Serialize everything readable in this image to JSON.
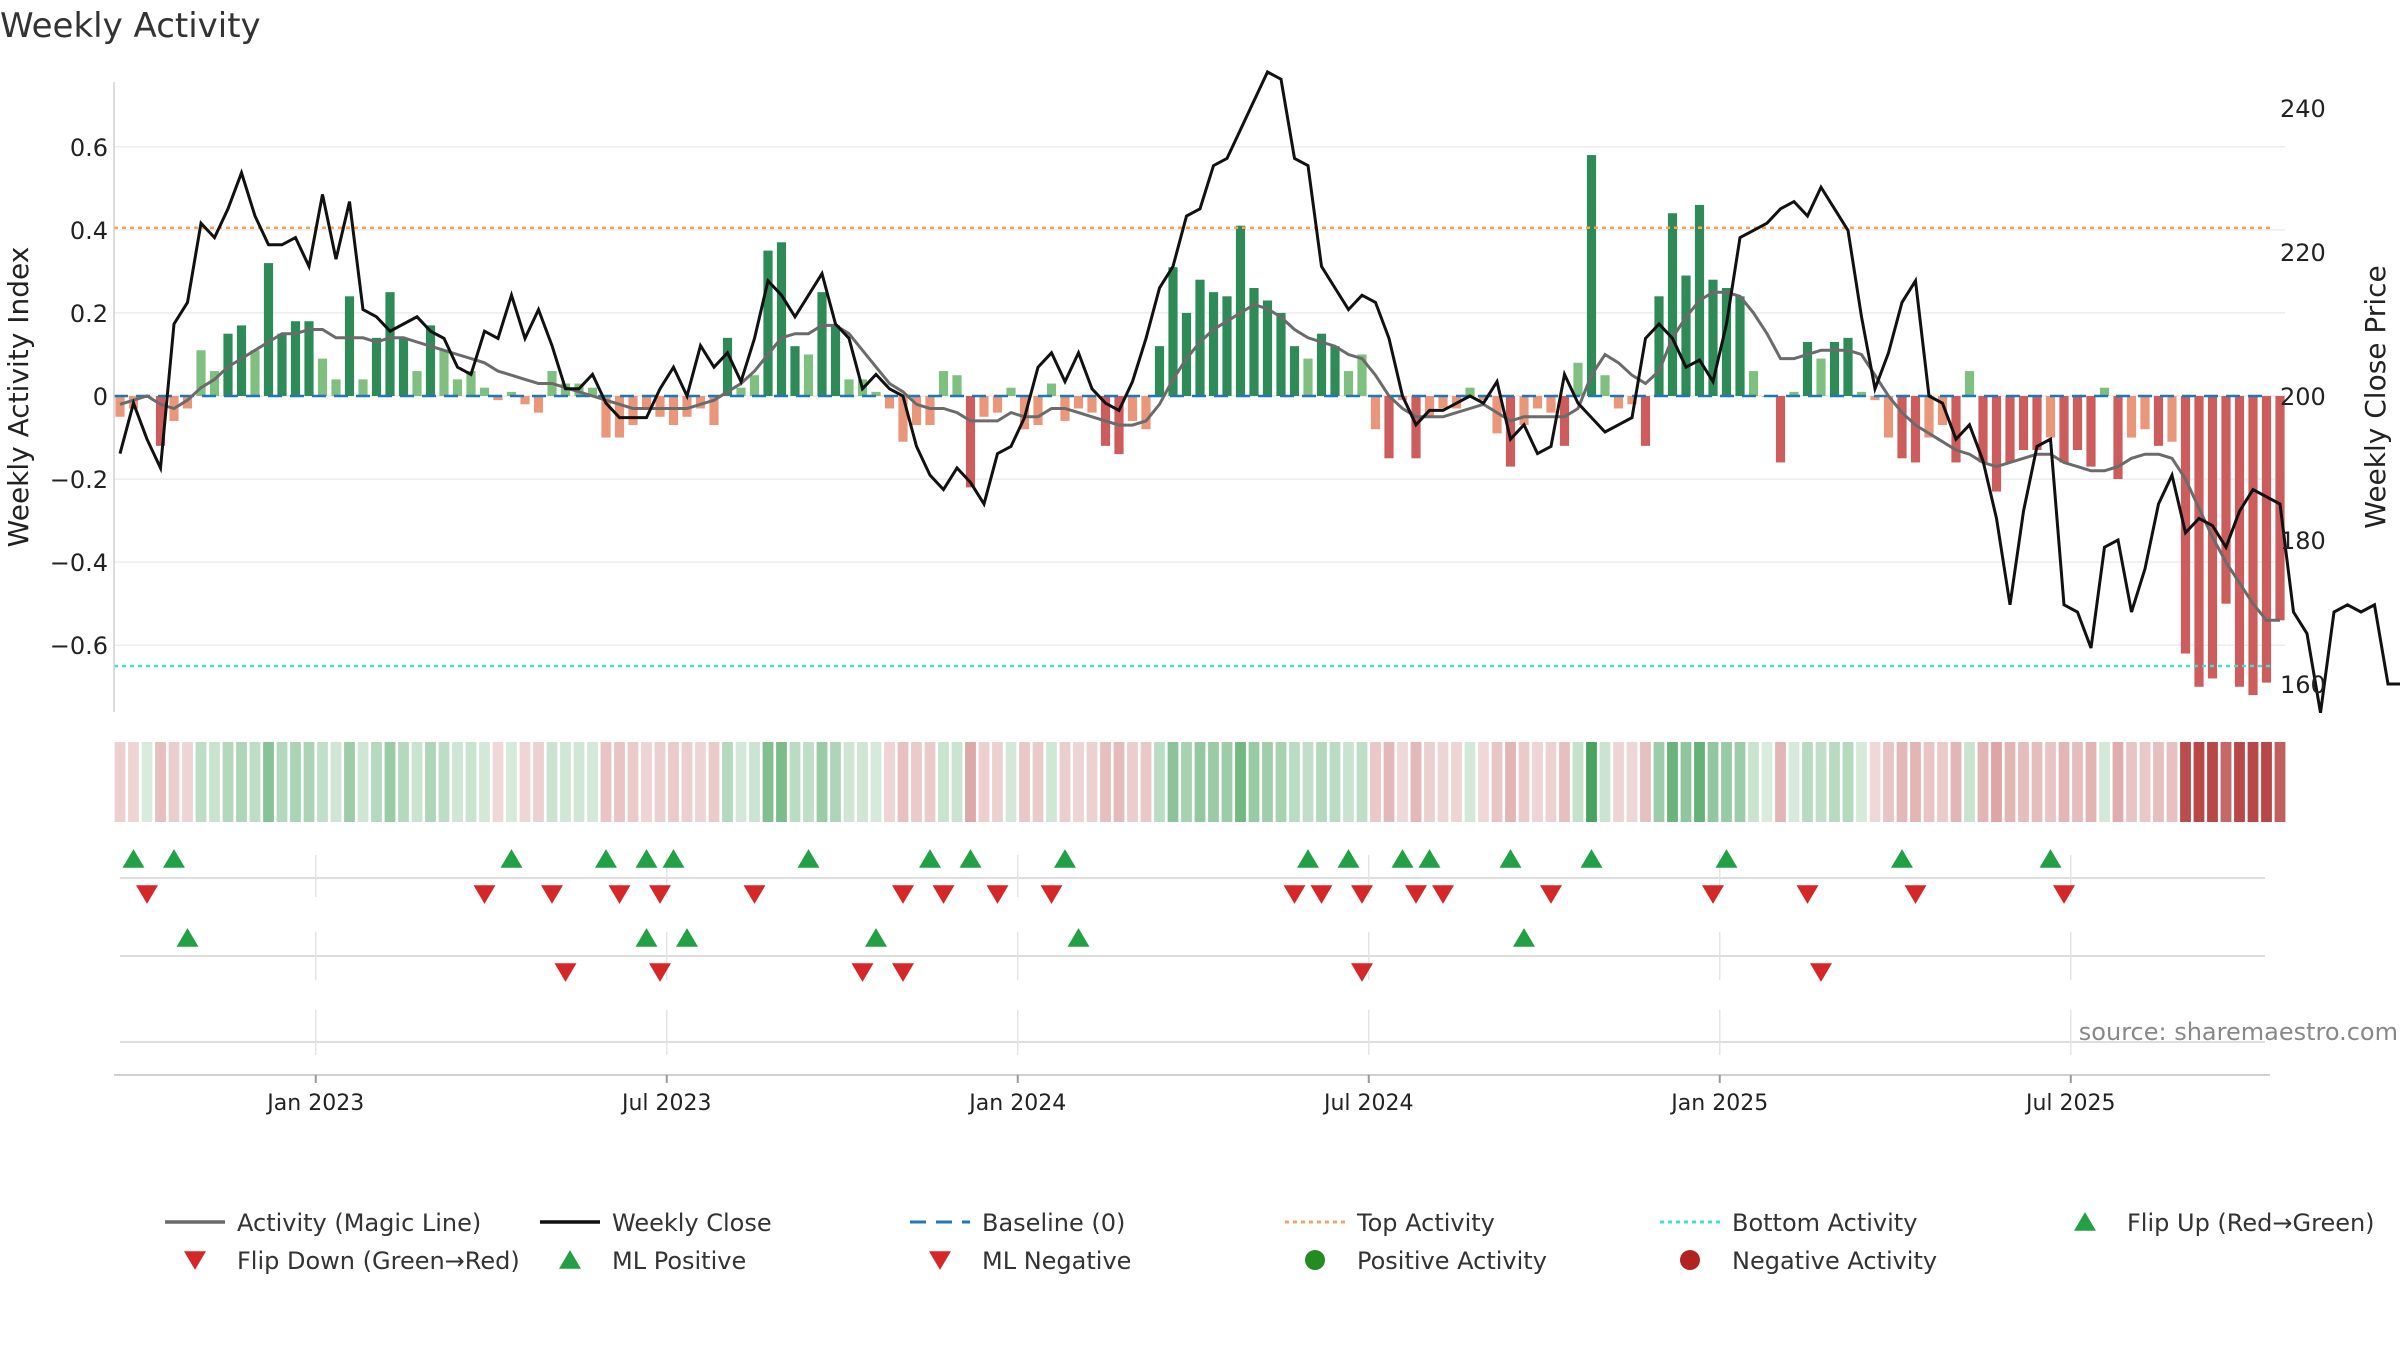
{
  "chart_data": {
    "type": "bar",
    "title": "Weekly Activity",
    "ylabel_left": "Weekly Activity Index",
    "ylabel_right": "Weekly Close Price",
    "left_ylim": [
      -0.78,
      0.78
    ],
    "right_ylim": [
      155,
      245
    ],
    "left_ticks": [
      0.6,
      0.4,
      0.2,
      0,
      -0.2,
      -0.4,
      -0.6
    ],
    "left_tick_labels": [
      "0.6",
      "0.4",
      "0.2",
      "0",
      "−0.2",
      "−0.4",
      "−0.6"
    ],
    "right_ticks": [
      240,
      220,
      200,
      180,
      160
    ],
    "right_tick_labels": [
      "240",
      "220",
      "200",
      "180",
      "160"
    ],
    "x_tick_labels": [
      "Jan 2023",
      "Jul 2023",
      "Jan 2024",
      "Jul 2024",
      "Jan 2025",
      "Jul 2025"
    ],
    "x_tick_weeks": [
      14.5,
      40.5,
      66.5,
      92.5,
      118.5,
      144.5
    ],
    "top_activity": 0.405,
    "bottom_activity": -0.65,
    "source": "source: sharemaestro.com",
    "activity": [
      -0.05,
      -0.03,
      0,
      -0.12,
      -0.06,
      -0.03,
      0.11,
      0.06,
      0.15,
      0.17,
      0.11,
      0.32,
      0.15,
      0.18,
      0.18,
      0.09,
      0.04,
      0.24,
      0.04,
      0.14,
      0.25,
      0.14,
      0.06,
      0.17,
      0.11,
      0.04,
      0.06,
      0.02,
      -0.01,
      0.01,
      -0.02,
      -0.04,
      0.06,
      0.03,
      0.03,
      0.02,
      -0.1,
      -0.1,
      -0.07,
      -0.03,
      -0.05,
      -0.07,
      -0.05,
      -0.03,
      -0.07,
      0.14,
      0.02,
      0.05,
      0.35,
      0.37,
      0.12,
      0.1,
      0.25,
      0.17,
      0.04,
      0.04,
      0.01,
      -0.03,
      -0.11,
      -0.07,
      -0.07,
      0.06,
      0.05,
      -0.22,
      -0.05,
      -0.04,
      0.02,
      -0.08,
      -0.07,
      0.03,
      -0.06,
      -0.03,
      -0.04,
      -0.12,
      -0.14,
      -0.06,
      -0.08,
      0.12,
      0.31,
      0.2,
      0.28,
      0.25,
      0.24,
      0.41,
      0.26,
      0.23,
      0.2,
      0.12,
      0.09,
      0.15,
      0.12,
      0.06,
      0.1,
      -0.08,
      -0.15,
      -0.01,
      -0.15,
      -0.05,
      -0.03,
      -0.03,
      0.02,
      -0.01,
      -0.09,
      -0.17,
      -0.07,
      -0.03,
      -0.04,
      -0.12,
      0.08,
      0.58,
      0.05,
      -0.03,
      -0.02,
      -0.12,
      0.24,
      0.44,
      0.29,
      0.46,
      0.28,
      0.26,
      0.24,
      0.06,
      0,
      -0.16,
      0.01,
      0.13,
      0.09,
      0.13,
      0.14,
      0.01,
      -0.01,
      -0.1,
      -0.15,
      -0.16,
      -0.1,
      -0.07,
      -0.16,
      0.06,
      -0.16,
      -0.23,
      -0.16,
      -0.13,
      -0.13,
      -0.1,
      -0.16,
      -0.13,
      -0.17,
      0.02,
      -0.2,
      -0.1,
      -0.08,
      -0.12,
      -0.11,
      -0.62,
      -0.7,
      -0.68,
      -0.5,
      -0.7,
      -0.72,
      -0.69,
      -0.54
    ],
    "magic_line": [
      -0.02,
      -0.01,
      0,
      -0.02,
      -0.03,
      -0.01,
      0.02,
      0.04,
      0.07,
      0.09,
      0.11,
      0.13,
      0.15,
      0.15,
      0.16,
      0.16,
      0.14,
      0.14,
      0.14,
      0.13,
      0.14,
      0.14,
      0.13,
      0.12,
      0.11,
      0.1,
      0.09,
      0.08,
      0.06,
      0.05,
      0.04,
      0.03,
      0.03,
      0.02,
      0.01,
      0.0,
      -0.01,
      -0.02,
      -0.03,
      -0.03,
      -0.03,
      -0.03,
      -0.03,
      -0.02,
      -0.01,
      0.01,
      0.03,
      0.06,
      0.1,
      0.14,
      0.15,
      0.15,
      0.17,
      0.17,
      0.15,
      0.11,
      0.07,
      0.03,
      0.01,
      -0.02,
      -0.03,
      -0.03,
      -0.04,
      -0.06,
      -0.06,
      -0.06,
      -0.04,
      -0.05,
      -0.05,
      -0.03,
      -0.03,
      -0.04,
      -0.05,
      -0.06,
      -0.07,
      -0.07,
      -0.06,
      -0.02,
      0.04,
      0.09,
      0.13,
      0.16,
      0.18,
      0.2,
      0.22,
      0.21,
      0.19,
      0.16,
      0.14,
      0.13,
      0.12,
      0.1,
      0.09,
      0.05,
      0.0,
      -0.03,
      -0.05,
      -0.05,
      -0.05,
      -0.04,
      -0.03,
      -0.02,
      -0.04,
      -0.06,
      -0.05,
      -0.05,
      -0.05,
      -0.05,
      -0.03,
      0.05,
      0.1,
      0.08,
      0.05,
      0.03,
      0.06,
      0.14,
      0.19,
      0.23,
      0.25,
      0.25,
      0.24,
      0.2,
      0.15,
      0.09,
      0.09,
      0.1,
      0.11,
      0.11,
      0.11,
      0.1,
      0.05,
      0.0,
      -0.04,
      -0.07,
      -0.09,
      -0.11,
      -0.13,
      -0.14,
      -0.16,
      -0.17,
      -0.16,
      -0.15,
      -0.14,
      -0.14,
      -0.16,
      -0.17,
      -0.18,
      -0.18,
      -0.17,
      -0.15,
      -0.14,
      -0.14,
      -0.15,
      -0.2,
      -0.27,
      -0.34,
      -0.4,
      -0.45,
      -0.5,
      -0.54,
      -0.54
    ],
    "weekly_close": [
      192,
      199,
      194,
      190,
      210,
      213,
      224,
      222,
      226,
      231,
      225,
      221,
      221,
      222,
      218,
      228,
      219,
      227,
      212,
      211,
      209,
      210,
      211,
      209,
      208,
      204,
      203,
      209,
      208,
      214,
      208,
      212,
      207,
      201,
      201,
      203,
      199,
      197,
      197,
      197,
      201,
      204,
      200,
      207,
      204,
      206,
      202,
      208,
      216,
      214,
      211,
      214,
      217,
      210,
      208,
      201,
      203,
      201,
      200,
      193,
      189,
      187,
      190,
      188,
      185,
      192,
      193,
      197,
      204,
      206,
      202,
      206,
      201,
      199,
      198,
      202,
      208,
      215,
      218,
      225,
      226,
      232,
      233,
      237,
      241,
      245,
      244,
      233,
      232,
      218,
      215,
      212,
      214,
      213,
      208,
      200,
      196,
      198,
      198,
      199,
      200,
      199,
      202,
      194,
      196,
      192,
      193,
      203,
      199,
      197,
      195,
      196,
      197,
      208,
      210,
      208,
      204,
      205,
      202,
      210,
      222,
      223,
      224,
      226,
      227,
      225,
      229,
      226,
      223,
      211,
      201,
      206,
      213,
      216,
      200,
      199,
      194,
      196,
      191,
      183,
      171,
      184,
      193,
      194,
      171,
      170,
      165,
      179,
      180,
      170,
      176,
      185,
      189,
      181,
      183,
      182,
      179,
      184,
      187,
      186,
      185,
      170,
      167,
      156,
      170,
      171,
      170,
      171,
      160,
      160
    ]
  },
  "flip_up_weeks": [
    1,
    4,
    29,
    36,
    39,
    41,
    51,
    60,
    63,
    70,
    88,
    91,
    95,
    97,
    103,
    109,
    119,
    132,
    143
  ],
  "flip_down_weeks": [
    2,
    27,
    32,
    37,
    40,
    47,
    58,
    61,
    65,
    69,
    87,
    89,
    92,
    96,
    98,
    106,
    118,
    125,
    133,
    144
  ],
  "ml_positive_weeks": [
    5,
    39,
    42,
    56,
    71,
    104
  ],
  "ml_negative_weeks": [
    33,
    40,
    55,
    58,
    92,
    126
  ],
  "colors": {
    "strong_green": "#2e8b57",
    "light_green": "#7fbf7f",
    "strong_red": "#cd5c5c",
    "light_red": "#e9967a",
    "magic_line": "#6b6b6b",
    "close_line": "#111111",
    "baseline": "#1f77b4",
    "top_activity": "#f4a460",
    "bottom_activity": "#40e0d0",
    "marker_green": "#22a045",
    "marker_red": "#d62728",
    "dot_green": "#228b22",
    "dot_red": "#b22222"
  },
  "legend": [
    {
      "label": "Activity (Magic Line)",
      "kind": "line",
      "color": "#6b6b6b"
    },
    {
      "label": "Weekly Close",
      "kind": "line",
      "color": "#111111"
    },
    {
      "label": "Baseline (0)",
      "kind": "dash",
      "color": "#1f77b4"
    },
    {
      "label": "Top Activity",
      "kind": "dot-line",
      "color": "#f4a460"
    },
    {
      "label": "Bottom Activity",
      "kind": "dot-line",
      "color": "#40e0d0"
    },
    {
      "label": "Flip Up (Red→Green)",
      "kind": "tri-up",
      "color": "#22a045"
    },
    {
      "label": "Flip Down (Green→Red)",
      "kind": "tri-down",
      "color": "#d62728"
    },
    {
      "label": "ML Positive",
      "kind": "tri-up",
      "color": "#22a045"
    },
    {
      "label": "ML Negative",
      "kind": "tri-down",
      "color": "#d62728"
    },
    {
      "label": "Positive Activity",
      "kind": "dot",
      "color": "#228b22"
    },
    {
      "label": "Negative Activity",
      "kind": "dot",
      "color": "#b22222"
    }
  ]
}
